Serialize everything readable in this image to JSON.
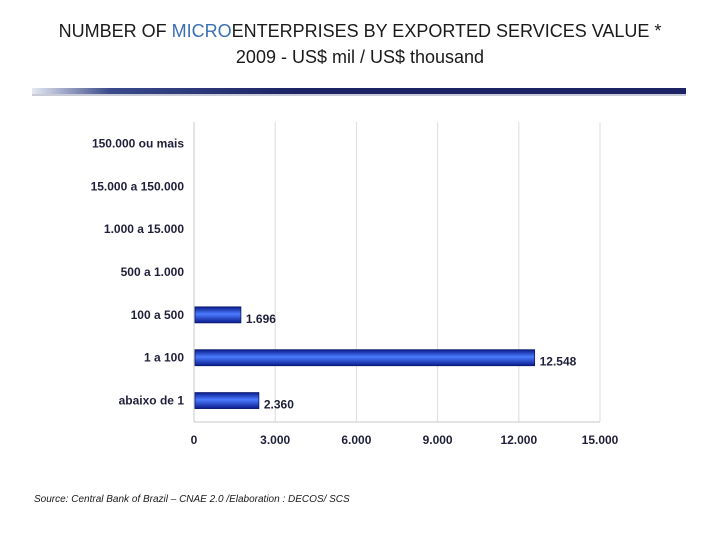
{
  "title": {
    "prefix": "NUMBER OF ",
    "accent": "MICRO",
    "suffix": "ENTERPRISES BY EXPORTED SERVICES VALUE *",
    "line2": "2009 - US$ mil / US$ thousand"
  },
  "source": "Source: Central Bank of Brazil – CNAE 2.0 /Elaboration : DECOS/ SCS",
  "colors": {
    "bar_dark": "#0a1a8c",
    "bar_light": "#4a7bff",
    "grid": "#dcdcdc",
    "axis_text": "#1f1f3a"
  },
  "chart_data": {
    "type": "bar",
    "orientation": "horizontal",
    "categories": [
      "150.000 ou mais",
      "15.000 a 150.000",
      "1.000 a 15.000",
      "500 a 1.000",
      "100 a 500",
      "1 a 100",
      "abaixo de 1"
    ],
    "values": [
      null,
      null,
      null,
      null,
      1696,
      12548,
      2360
    ],
    "value_labels": [
      "",
      "",
      "",
      "",
      "1.696",
      "12.548",
      "2.360"
    ],
    "xlim": [
      0,
      15000
    ],
    "xticks": [
      0,
      3000,
      6000,
      9000,
      12000,
      15000
    ],
    "xtick_labels": [
      "0",
      "3.000",
      "6.000",
      "9.000",
      "12.000",
      "15.000"
    ],
    "xlabel": "",
    "ylabel": "",
    "grid": true,
    "legend": "none"
  }
}
